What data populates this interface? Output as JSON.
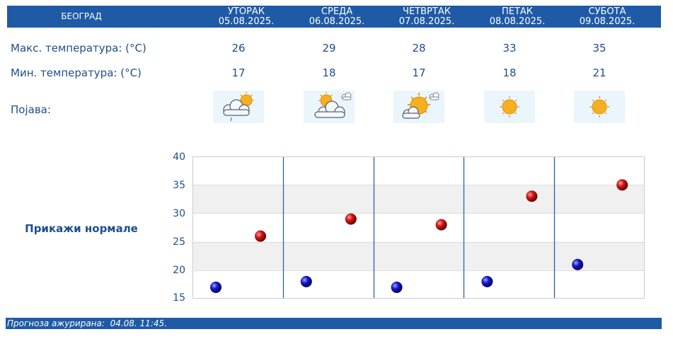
{
  "city": "БЕОГРАД",
  "days": [
    {
      "name": "УТОРАК",
      "date": "05.08.2025.",
      "max": "26",
      "min": "17",
      "icon": "partly-cloudy-rain-icon"
    },
    {
      "name": "СРЕДА",
      "date": "06.08.2025.",
      "max": "29",
      "min": "18",
      "icon": "partly-cloudy-icon"
    },
    {
      "name": "ЧЕТВРТАК",
      "date": "07.08.2025.",
      "max": "28",
      "min": "17",
      "icon": "mostly-sunny-icon"
    },
    {
      "name": "ПЕТАК",
      "date": "08.08.2025.",
      "max": "33",
      "min": "18",
      "icon": "sunny-icon"
    },
    {
      "name": "СУБОТА",
      "date": "09.08.2025.",
      "max": "35",
      "min": "21",
      "icon": "sunny-icon"
    }
  ],
  "labels": {
    "max_temp": "Макс. температура: (°C)",
    "min_temp": "Мин. температура: (°C)",
    "phenomenon": "Појава:"
  },
  "show_normals": "Прикажи нормале",
  "footer": {
    "label": "Прогноза ажурирана:",
    "value": "04.08. 11:45."
  },
  "chart_data": {
    "type": "scatter",
    "categories": [
      "05.08.2025.",
      "06.08.2025.",
      "07.08.2025.",
      "08.08.2025.",
      "09.08.2025."
    ],
    "series": [
      {
        "key": "min",
        "values": [
          17,
          18,
          17,
          18,
          21
        ],
        "color": "#1010b0"
      },
      {
        "key": "max",
        "values": [
          26,
          29,
          28,
          33,
          35
        ],
        "color": "#c01010"
      }
    ],
    "ylim": [
      15,
      40
    ],
    "yticks": [
      40,
      35,
      30,
      25,
      20,
      15
    ],
    "grid": true
  },
  "colors": {
    "header_bg": "#1f5aa6",
    "text": "#1f4e8c",
    "band": "#f0f0f0"
  }
}
